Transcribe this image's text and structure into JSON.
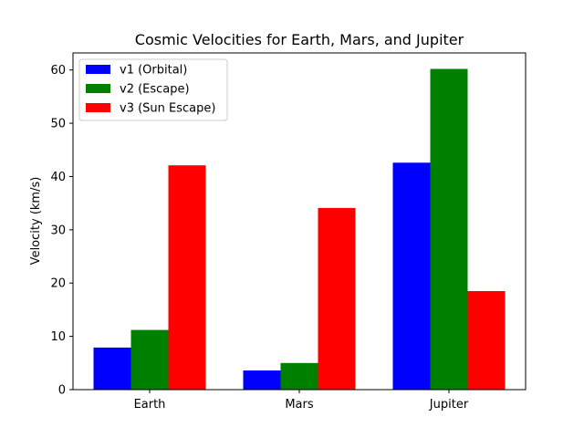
{
  "chart_data": {
    "type": "bar",
    "title": "Cosmic Velocities for Earth, Mars, and Jupiter",
    "xlabel": "",
    "ylabel": "Velocity (km/s)",
    "categories": [
      "Earth",
      "Mars",
      "Jupiter"
    ],
    "series": [
      {
        "name": "v1 (Orbital)",
        "color": "#0000ff",
        "values": [
          7.9,
          3.6,
          42.6
        ]
      },
      {
        "name": "v2 (Escape)",
        "color": "#008000",
        "values": [
          11.2,
          5.0,
          60.2
        ]
      },
      {
        "name": "v3 (Sun Escape)",
        "color": "#ff0000",
        "values": [
          42.1,
          34.1,
          18.5
        ]
      }
    ],
    "ylim": [
      0,
      63.2
    ],
    "yticks": [
      0,
      10,
      20,
      30,
      40,
      50,
      60
    ],
    "grid": false,
    "legend_position": "upper left"
  }
}
